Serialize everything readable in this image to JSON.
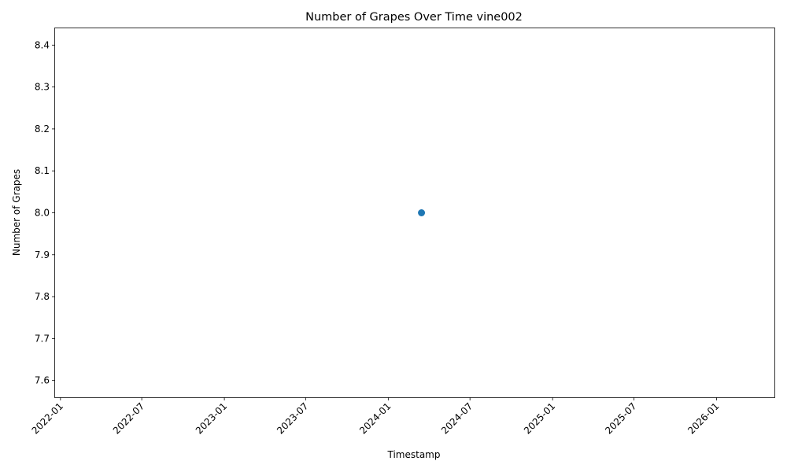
{
  "chart_data": {
    "type": "scatter",
    "title": "Number of Grapes Over Time vine002",
    "xlabel": "Timestamp",
    "ylabel": "Number of Grapes",
    "x_axis_type": "date",
    "xlim": [
      "2021-12-20",
      "2026-05-10"
    ],
    "ylim": [
      7.56,
      8.44
    ],
    "x_ticks": [
      "2022-01",
      "2022-07",
      "2023-01",
      "2023-07",
      "2024-01",
      "2024-07",
      "2025-01",
      "2025-07",
      "2026-01"
    ],
    "x_tick_rotation": 45,
    "y_ticks": [
      "7.6",
      "7.7",
      "7.8",
      "7.9",
      "8.0",
      "8.1",
      "8.2",
      "8.3",
      "8.4"
    ],
    "grid": false,
    "legend": "none",
    "series": [
      {
        "color": "#1f77b4",
        "points": [
          {
            "x": "2024-03-15",
            "y": 8.0
          }
        ]
      }
    ]
  }
}
